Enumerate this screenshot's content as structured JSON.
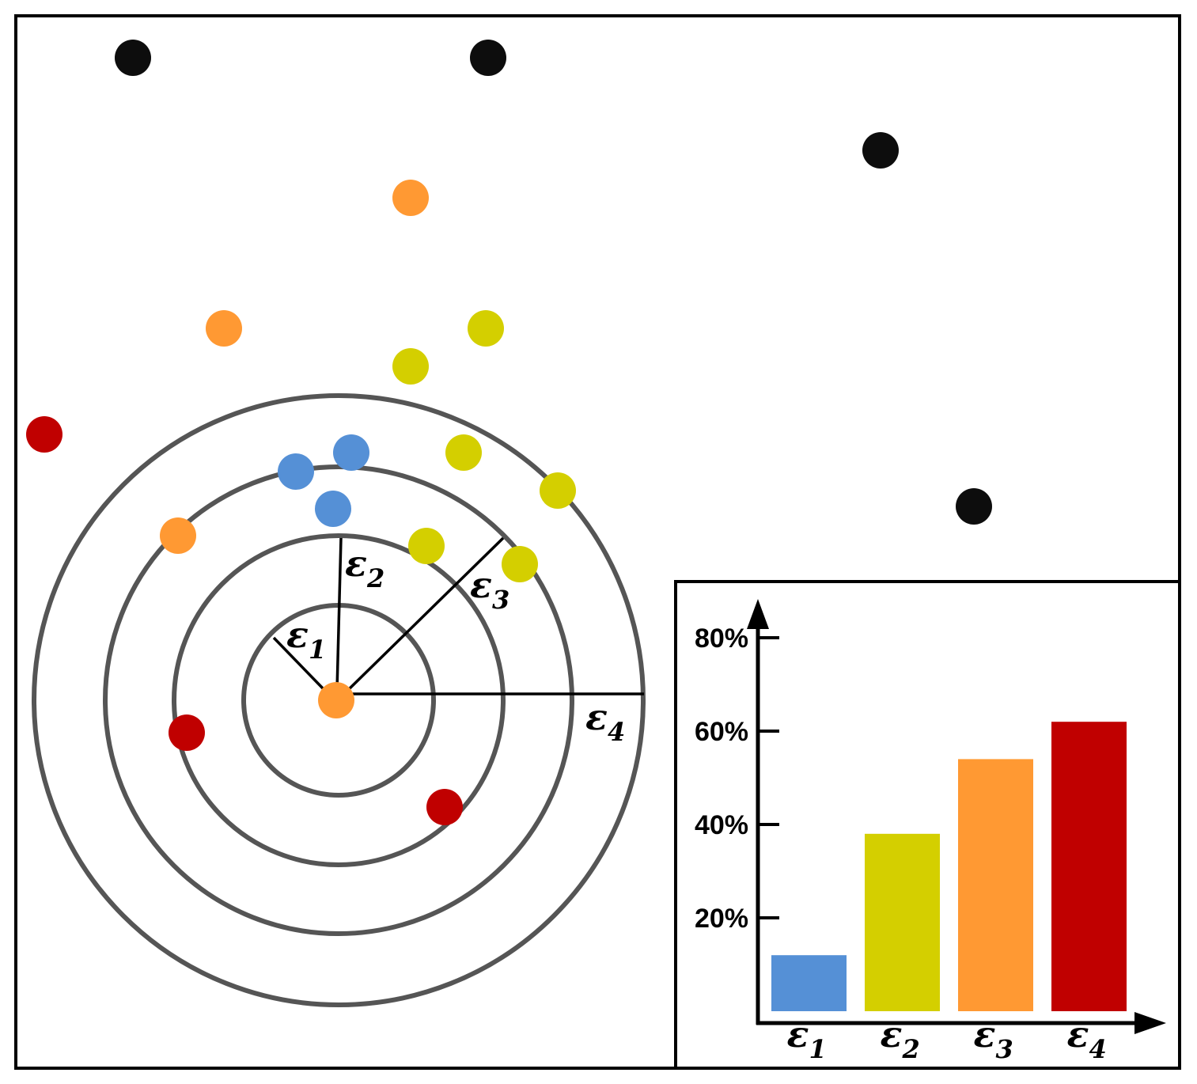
{
  "colors": {
    "blue": "#5590D6",
    "yellow": "#D4CF00",
    "orange": "#FF9933",
    "red": "#C00000",
    "black": "#000000",
    "ring": "#555555"
  },
  "radii_labels": [
    {
      "symbol": "ε",
      "sub": "1"
    },
    {
      "symbol": "ε",
      "sub": "2"
    },
    {
      "symbol": "ε",
      "sub": "3"
    },
    {
      "symbol": "ε",
      "sub": "4"
    }
  ],
  "chart_data": {
    "type": "bar",
    "categories": [
      "ε1",
      "ε2",
      "ε3",
      "ε4"
    ],
    "category_labels": [
      {
        "symbol": "ε",
        "sub": "1"
      },
      {
        "symbol": "ε",
        "sub": "2"
      },
      {
        "symbol": "ε",
        "sub": "3"
      },
      {
        "symbol": "ε",
        "sub": "4"
      }
    ],
    "values": [
      12,
      38,
      54,
      62
    ],
    "bar_colors": [
      "#5590D6",
      "#D4CF00",
      "#FF9933",
      "#C00000"
    ],
    "yticks": [
      "20%",
      "40%",
      "60%",
      "80%"
    ],
    "ytick_values": [
      20,
      40,
      60,
      80
    ],
    "ylim": [
      0,
      80
    ],
    "title": "",
    "xlabel": "",
    "ylabel": ""
  }
}
